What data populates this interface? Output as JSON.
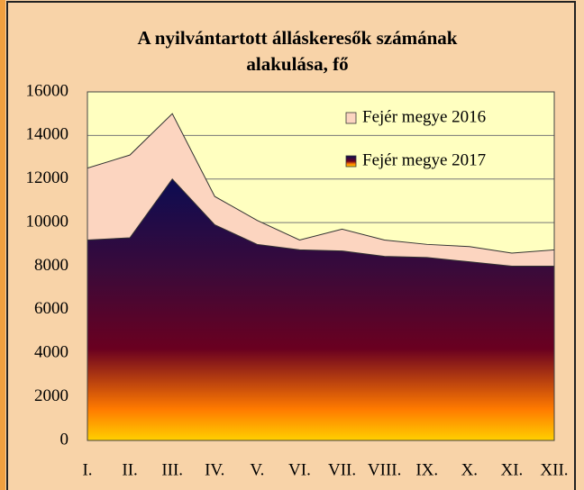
{
  "chart_data": {
    "type": "area",
    "title": [
      "A nyilvántartott álláskeresők számának",
      "alakulása, fő"
    ],
    "categories": [
      "I.",
      "II.",
      "III.",
      "IV.",
      "V.",
      "VI.",
      "VII.",
      "VIII.",
      "IX.",
      "X.",
      "XI.",
      "XII."
    ],
    "series": [
      {
        "name": "Fejér megye 2016",
        "color": "#fcd5c0",
        "values": [
          12500,
          13100,
          15000,
          11200,
          10100,
          9200,
          9700,
          9200,
          9000,
          8900,
          8600,
          8750
        ]
      },
      {
        "name": "Fejér megye 2017",
        "color": "#1a0a50",
        "gradient": [
          "#0c0c52",
          "#3a0a3a",
          "#6a0020",
          "#ff7a00",
          "#ffd000"
        ],
        "values": [
          9200,
          9300,
          12000,
          9900,
          9000,
          8750,
          8700,
          8450,
          8400,
          8200,
          8000,
          8000
        ]
      }
    ],
    "ylim": [
      0,
      16000
    ],
    "yticks": [
      0,
      2000,
      4000,
      6000,
      8000,
      10000,
      12000,
      14000,
      16000
    ],
    "grid": true,
    "legend": "top-right"
  }
}
